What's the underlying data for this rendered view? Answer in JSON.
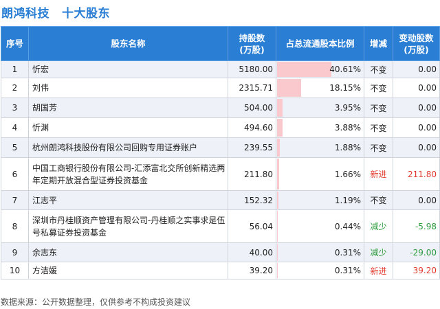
{
  "header": {
    "company": "朗鸿科技",
    "section": "十大股东"
  },
  "columns": {
    "index": "序号",
    "name": "股东名称",
    "shares_line1": "持股数",
    "shares_line2": "(万股)",
    "ratio": "占总流通股本比例",
    "status": "增减",
    "change_line1": "变动股数",
    "change_line2": "(万股)"
  },
  "rows": [
    {
      "index": "1",
      "name": "忻宏",
      "shares": "5180.00",
      "ratio": "40.61%",
      "ratio_value": 40.61,
      "status": "不变",
      "status_type": "unchanged",
      "change": "0.00",
      "change_type": "zero"
    },
    {
      "index": "2",
      "name": "刘伟",
      "shares": "2315.71",
      "ratio": "18.15%",
      "ratio_value": 18.15,
      "status": "不变",
      "status_type": "unchanged",
      "change": "0.00",
      "change_type": "zero"
    },
    {
      "index": "3",
      "name": "胡国芳",
      "shares": "504.00",
      "ratio": "3.95%",
      "ratio_value": 3.95,
      "status": "不变",
      "status_type": "unchanged",
      "change": "0.00",
      "change_type": "zero"
    },
    {
      "index": "4",
      "name": "忻渊",
      "shares": "494.60",
      "ratio": "3.88%",
      "ratio_value": 3.88,
      "status": "不变",
      "status_type": "unchanged",
      "change": "0.00",
      "change_type": "zero"
    },
    {
      "index": "5",
      "name": "杭州朗鸿科技股份有限公司回购专用证券账户",
      "shares": "239.55",
      "ratio": "1.88%",
      "ratio_value": 1.88,
      "status": "不变",
      "status_type": "unchanged",
      "change": "0.00",
      "change_type": "zero"
    },
    {
      "index": "6",
      "name": "中国工商银行股份有限公司-汇添富北交所创新精选两年定期开放混合型证券投资基金",
      "shares": "211.80",
      "ratio": "1.66%",
      "ratio_value": 1.66,
      "status": "新进",
      "status_type": "new",
      "change": "211.80",
      "change_type": "up"
    },
    {
      "index": "7",
      "name": "江志平",
      "shares": "152.32",
      "ratio": "1.19%",
      "ratio_value": 1.19,
      "status": "不变",
      "status_type": "unchanged",
      "change": "0.00",
      "change_type": "zero"
    },
    {
      "index": "8",
      "name": "深圳市丹桂顺资产管理有限公司-丹桂顺之实事求是伍号私募证券投资基金",
      "shares": "56.04",
      "ratio": "0.44%",
      "ratio_value": 0.44,
      "status": "减少",
      "status_type": "reduced",
      "change": "-5.98",
      "change_type": "down"
    },
    {
      "index": "9",
      "name": "余志东",
      "shares": "40.00",
      "ratio": "0.31%",
      "ratio_value": 0.31,
      "status": "减少",
      "status_type": "reduced",
      "change": "-29.00",
      "change_type": "down"
    },
    {
      "index": "10",
      "name": "方洁媛",
      "shares": "39.20",
      "ratio": "0.31%",
      "ratio_value": 0.31,
      "status": "新进",
      "status_type": "new",
      "change": "39.20",
      "change_type": "up"
    }
  ],
  "footer": {
    "source": "数据来源：公开数据整理，仅供参考不构成投资建议"
  },
  "colors": {
    "header_bg": "#2a7fd4",
    "bar": "#f9c9cd",
    "increase": "#e23a2e",
    "decrease": "#2a9a3a"
  }
}
